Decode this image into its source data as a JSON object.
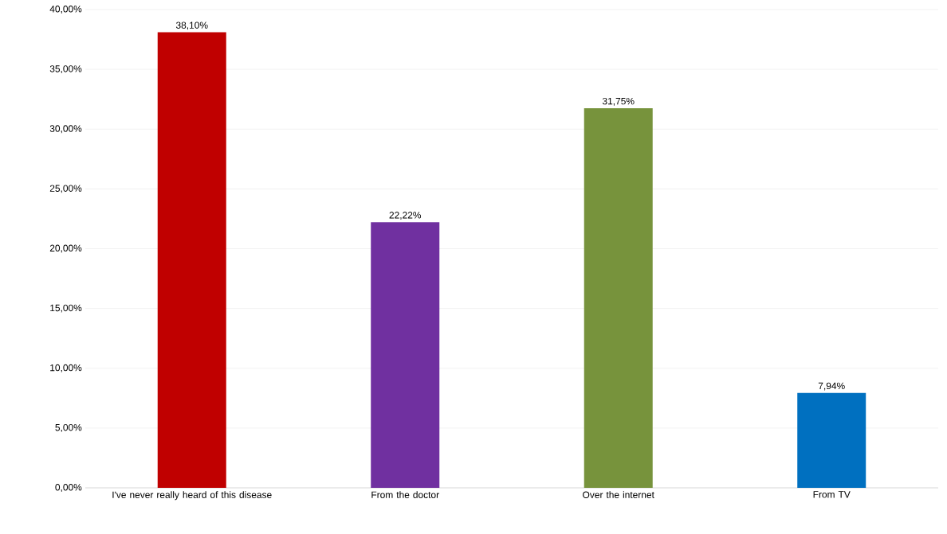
{
  "chart_data": {
    "type": "bar",
    "categories": [
      "I've never really heard of this disease",
      "From the doctor",
      "Over the internet",
      "From TV"
    ],
    "values": [
      38.1,
      22.22,
      31.75,
      7.94
    ],
    "colors": [
      "#c00000",
      "#7030a0",
      "#77933c",
      "#0070c0"
    ],
    "value_labels": [
      "38,10%",
      "22,22%",
      "31,75%",
      "7,94%"
    ],
    "ylim": [
      0,
      40
    ],
    "yticks": [
      {
        "value": 0,
        "label": "0,00%"
      },
      {
        "value": 5,
        "label": "5,00%"
      },
      {
        "value": 10,
        "label": "10,00%"
      },
      {
        "value": 15,
        "label": "15,00%"
      },
      {
        "value": 20,
        "label": "20,00%"
      },
      {
        "value": 25,
        "label": "25,00%"
      },
      {
        "value": 30,
        "label": "30,00%"
      },
      {
        "value": 35,
        "label": "35,00%"
      },
      {
        "value": 40,
        "label": "40,00%"
      }
    ],
    "grid": "y"
  }
}
